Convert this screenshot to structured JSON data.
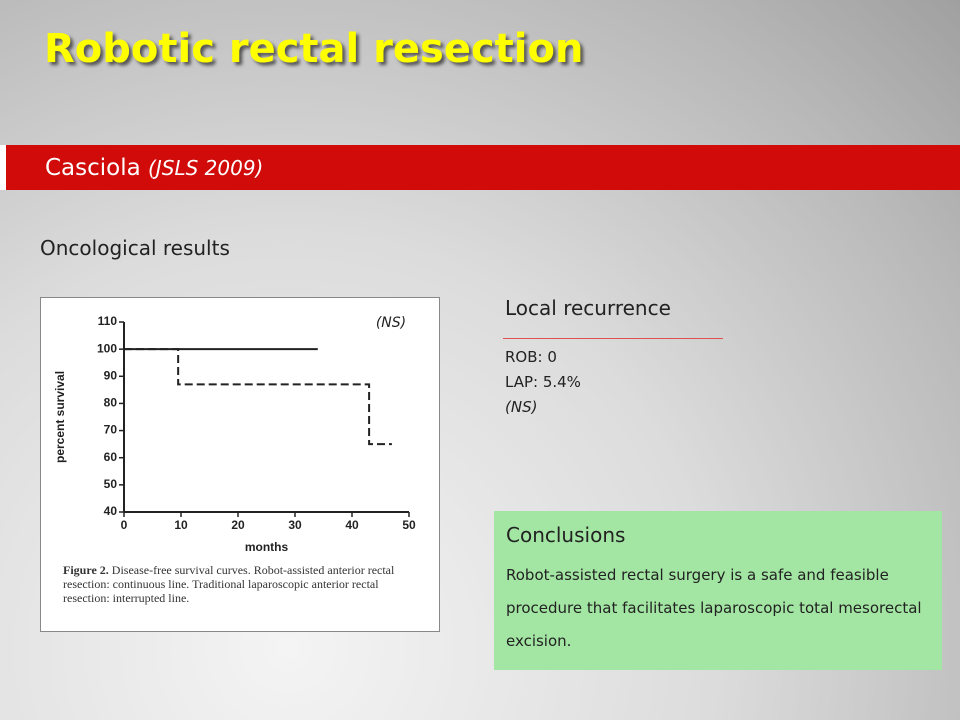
{
  "title": "Robotic rectal resection",
  "subtitle": {
    "author": "Casciola",
    "source": "(JSLS 2009)"
  },
  "section": "Oncological results",
  "chart_data": {
    "type": "line",
    "annotation": "(NS)",
    "xlabel": "months",
    "ylabel": "percent survival",
    "xlim": [
      0,
      50
    ],
    "xticks": [
      0,
      10,
      20,
      30,
      40,
      50
    ],
    "ylim": [
      40,
      110
    ],
    "yticks": [
      40,
      50,
      60,
      70,
      80,
      90,
      100,
      110
    ],
    "series": [
      {
        "color": "#222222",
        "dashed": false,
        "x": [
          0,
          34
        ],
        "values": [
          100,
          100
        ]
      },
      {
        "color": "#222222",
        "dashed": true,
        "x": [
          0,
          9.5,
          9.5,
          43,
          43,
          47
        ],
        "values": [
          100,
          100,
          87,
          87,
          65,
          65
        ]
      }
    ],
    "caption": {
      "label": "Figure 2.",
      "text": "Disease-free survival curves. Robot-assisted anterior rectal resection: continuous line. Traditional laparoscopic anterior rectal resection: interrupted line."
    }
  },
  "recurrence": {
    "heading": "Local recurrence",
    "lines": [
      "ROB: 0",
      "LAP: 5.4%",
      "(NS)"
    ]
  },
  "conclusions": {
    "heading": "Conclusions",
    "text": "Robot-assisted rectal surgery is a safe and feasible procedure that facilitates laparoscopic total mesorectal excision."
  }
}
